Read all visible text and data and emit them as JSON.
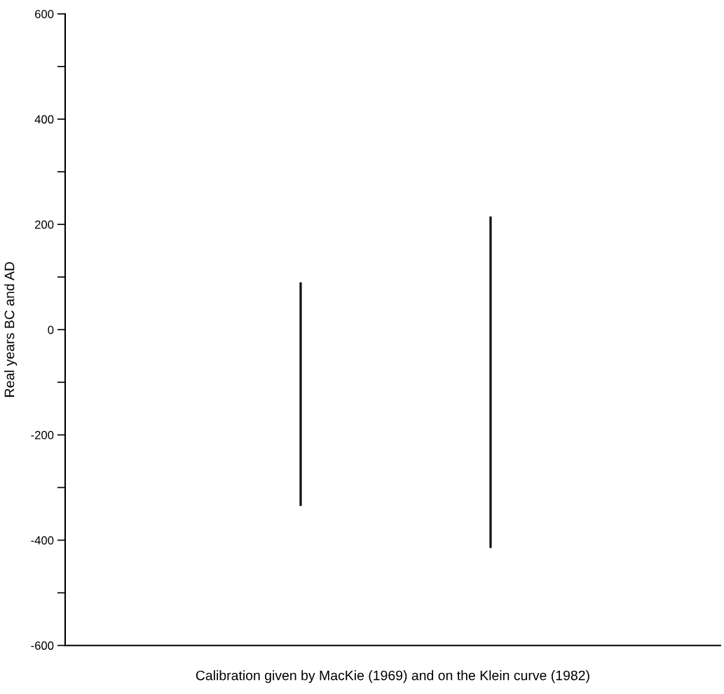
{
  "chart_data": {
    "type": "bar",
    "xlabel": "Calibration given by MacKie (1969) and on the Klein curve (1982)",
    "ylabel": "Real years BC and AD",
    "categories": [
      null,
      null
    ],
    "base": [
      -335,
      -415
    ],
    "values": [
      425,
      630
    ],
    "color": "#111111",
    "ylim": [
      -600,
      600
    ],
    "yticks": [
      -600,
      {
        "value": -500,
        "label": null
      },
      -400,
      {
        "value": -300,
        "label": null
      },
      -200,
      {
        "value": -100,
        "label": null
      },
      0,
      {
        "value": 100,
        "label": null
      },
      200,
      {
        "value": 300,
        "label": null
      },
      400,
      {
        "value": 500,
        "label": null
      },
      600
    ],
    "grid": false
  }
}
